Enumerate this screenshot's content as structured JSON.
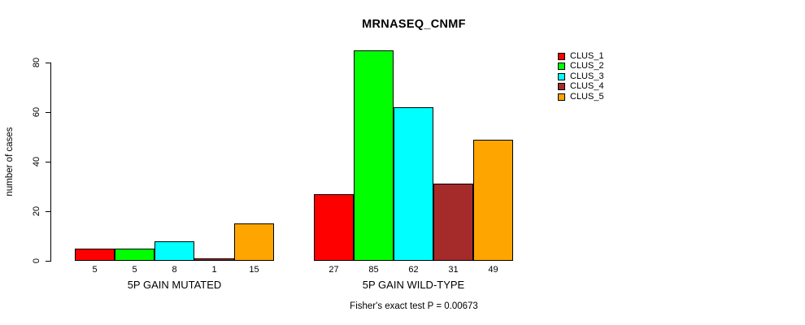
{
  "chart_data": {
    "type": "bar",
    "title": "MRNASEQ_CNMF",
    "xlabel": "",
    "ylabel": "number of cases",
    "ylim": [
      0,
      80
    ],
    "yticks": [
      0,
      20,
      40,
      60,
      80
    ],
    "grid": false,
    "legend_position": "top-right",
    "series": [
      {
        "name": "CLUS_1",
        "color": "#FF0000"
      },
      {
        "name": "CLUS_2",
        "color": "#00FF00"
      },
      {
        "name": "CLUS_3",
        "color": "#00FFFF"
      },
      {
        "name": "CLUS_4",
        "color": "#A52A2A"
      },
      {
        "name": "CLUS_5",
        "color": "#FFA500"
      }
    ],
    "groups": [
      {
        "label": "5P GAIN MUTATED",
        "values": [
          5,
          5,
          8,
          1,
          15
        ]
      },
      {
        "label": "5P GAIN WILD-TYPE",
        "values": [
          27,
          85,
          62,
          31,
          49
        ]
      }
    ]
  },
  "footer": {
    "caption": "Fisher's exact test P = 0.00673"
  }
}
